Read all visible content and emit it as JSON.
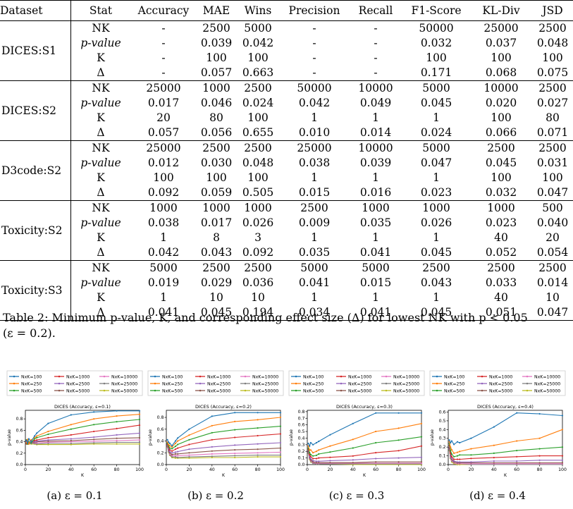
{
  "table": {
    "headers": [
      "Dataset",
      "Stat",
      "Accuracy",
      "MAE",
      "Wins",
      "Precision",
      "Recall",
      "F1-Score",
      "KL-Div",
      "JSD"
    ],
    "groups": [
      {
        "dataset": "DICES:S1",
        "rows": [
          {
            "stat": "NK",
            "values": [
              "-",
              "2500",
              "5000",
              "-",
              "-",
              "50000",
              "25000",
              "2500"
            ]
          },
          {
            "stat": "p-value",
            "values": [
              "-",
              "0.039",
              "0.042",
              "-",
              "-",
              "0.032",
              "0.037",
              "0.048"
            ]
          },
          {
            "stat": "K",
            "values": [
              "-",
              "100",
              "100",
              "-",
              "-",
              "100",
              "100",
              "100"
            ]
          },
          {
            "stat": "Δ",
            "values": [
              "-",
              "0.057",
              "0.663",
              "-",
              "-",
              "0.171",
              "0.068",
              "0.075"
            ]
          }
        ]
      },
      {
        "dataset": "DICES:S2",
        "rows": [
          {
            "stat": "NK",
            "values": [
              "25000",
              "1000",
              "2500",
              "50000",
              "10000",
              "5000",
              "10000",
              "2500"
            ]
          },
          {
            "stat": "p-value",
            "values": [
              "0.017",
              "0.046",
              "0.024",
              "0.042",
              "0.049",
              "0.045",
              "0.020",
              "0.027"
            ]
          },
          {
            "stat": "K",
            "values": [
              "20",
              "80",
              "100",
              "1",
              "1",
              "1",
              "100",
              "80"
            ]
          },
          {
            "stat": "Δ",
            "values": [
              "0.057",
              "0.056",
              "0.655",
              "0.010",
              "0.014",
              "0.024",
              "0.066",
              "0.071"
            ]
          }
        ]
      },
      {
        "dataset": "D3code:S2",
        "rows": [
          {
            "stat": "NK",
            "values": [
              "25000",
              "2500",
              "2500",
              "25000",
              "10000",
              "5000",
              "2500",
              "2500"
            ]
          },
          {
            "stat": "p-value",
            "values": [
              "0.012",
              "0.030",
              "0.048",
              "0.038",
              "0.039",
              "0.047",
              "0.045",
              "0.031"
            ]
          },
          {
            "stat": "K",
            "values": [
              "100",
              "100",
              "100",
              "1",
              "1",
              "1",
              "100",
              "100"
            ]
          },
          {
            "stat": "Δ",
            "values": [
              "0.092",
              "0.059",
              "0.505",
              "0.015",
              "0.016",
              "0.023",
              "0.032",
              "0.047"
            ]
          }
        ]
      },
      {
        "dataset": "Toxicity:S2",
        "rows": [
          {
            "stat": "NK",
            "values": [
              "1000",
              "1000",
              "1000",
              "2500",
              "1000",
              "1000",
              "1000",
              "500"
            ]
          },
          {
            "stat": "p-value",
            "values": [
              "0.038",
              "0.017",
              "0.026",
              "0.009",
              "0.035",
              "0.026",
              "0.023",
              "0.040"
            ]
          },
          {
            "stat": "K",
            "values": [
              "1",
              "8",
              "3",
              "1",
              "1",
              "1",
              "40",
              "20"
            ]
          },
          {
            "stat": "Δ",
            "values": [
              "0.042",
              "0.043",
              "0.092",
              "0.035",
              "0.041",
              "0.045",
              "0.052",
              "0.054"
            ]
          }
        ]
      },
      {
        "dataset": "Toxicity:S3",
        "rows": [
          {
            "stat": "NK",
            "values": [
              "5000",
              "2500",
              "2500",
              "5000",
              "5000",
              "2500",
              "2500",
              "2500"
            ]
          },
          {
            "stat": "p-value",
            "values": [
              "0.019",
              "0.029",
              "0.036",
              "0.041",
              "0.015",
              "0.043",
              "0.033",
              "0.014"
            ]
          },
          {
            "stat": "K",
            "values": [
              "1",
              "10",
              "10",
              "1",
              "1",
              "1",
              "40",
              "10"
            ]
          },
          {
            "stat": "Δ",
            "values": [
              "0.041",
              "0.045",
              "0.194",
              "0.034",
              "0.041",
              "0.045",
              "0.051",
              "0.047"
            ]
          }
        ]
      }
    ]
  },
  "caption": {
    "line1": "Table 2: Minimum p-value, K, and corresponding effect size (Δ) for lowest NK with p < 0.05",
    "line2": "(ε = 0.2)."
  },
  "colors": [
    "#1f77b4",
    "#ff7f0e",
    "#2ca02c",
    "#d62728",
    "#9467bd",
    "#8c564b",
    "#e377c2",
    "#7f7f7f",
    "#bcbd22"
  ],
  "chart_data": [
    {
      "type": "line",
      "title": "DICES (Accuracy, ε=0.1)",
      "caption": "(a) ε = 0.1",
      "xlabel": "K",
      "ylabel": "p-value",
      "xlim": [
        0,
        100
      ],
      "ylim": [
        0,
        0.95
      ],
      "xticks": [
        0,
        20,
        40,
        60,
        80,
        100
      ],
      "yticks": [
        0.0,
        0.2,
        0.4,
        0.6,
        0.8
      ],
      "legend": "top",
      "x": [
        1,
        2,
        3,
        5,
        8,
        10,
        20,
        40,
        60,
        80,
        100
      ],
      "series": [
        {
          "name": "NxK=100",
          "values": [
            0.42,
            0.38,
            0.45,
            0.4,
            0.5,
            0.55,
            0.72,
            0.87,
            0.92,
            0.94,
            0.94
          ]
        },
        {
          "name": "NxK=250",
          "values": [
            0.38,
            0.44,
            0.36,
            0.43,
            0.47,
            0.5,
            0.58,
            0.7,
            0.8,
            0.85,
            0.88
          ]
        },
        {
          "name": "NxK=500",
          "values": [
            0.43,
            0.36,
            0.4,
            0.38,
            0.45,
            0.47,
            0.53,
            0.62,
            0.7,
            0.75,
            0.79
          ]
        },
        {
          "name": "NxK=1000",
          "values": [
            0.37,
            0.42,
            0.38,
            0.4,
            0.42,
            0.43,
            0.47,
            0.52,
            0.58,
            0.63,
            0.69
          ]
        },
        {
          "name": "NxK=2500",
          "values": [
            0.41,
            0.37,
            0.39,
            0.4,
            0.4,
            0.41,
            0.43,
            0.45,
            0.48,
            0.52,
            0.55
          ]
        },
        {
          "name": "NxK=5000",
          "values": [
            0.36,
            0.4,
            0.38,
            0.39,
            0.39,
            0.4,
            0.41,
            0.42,
            0.44,
            0.46,
            0.47
          ]
        },
        {
          "name": "NxK=10000",
          "values": [
            0.4,
            0.38,
            0.37,
            0.38,
            0.38,
            0.38,
            0.39,
            0.4,
            0.41,
            0.42,
            0.43
          ]
        },
        {
          "name": "NxK=25000",
          "values": [
            0.38,
            0.41,
            0.36,
            0.37,
            0.37,
            0.36,
            0.37,
            0.37,
            0.38,
            0.39,
            0.39
          ]
        },
        {
          "name": "NxK=50000",
          "values": [
            0.42,
            0.36,
            0.39,
            0.36,
            0.36,
            0.35,
            0.35,
            0.35,
            0.36,
            0.36,
            0.36
          ]
        }
      ]
    },
    {
      "type": "line",
      "title": "DICES (Accuracy, ε=0.2)",
      "caption": "(b) ε = 0.2",
      "xlabel": "K",
      "ylabel": "p-value",
      "xlim": [
        0,
        100
      ],
      "ylim": [
        0,
        0.92
      ],
      "xticks": [
        0,
        20,
        40,
        60,
        80,
        100
      ],
      "yticks": [
        0.0,
        0.2,
        0.4,
        0.6,
        0.8
      ],
      "legend": "top",
      "x": [
        1,
        2,
        3,
        5,
        8,
        10,
        20,
        40,
        60,
        80,
        100
      ],
      "series": [
        {
          "name": "NxK=100",
          "values": [
            0.42,
            0.38,
            0.36,
            0.32,
            0.4,
            0.45,
            0.6,
            0.82,
            0.88,
            0.88,
            0.88
          ]
        },
        {
          "name": "NxK=250",
          "values": [
            0.38,
            0.34,
            0.32,
            0.3,
            0.36,
            0.4,
            0.5,
            0.66,
            0.73,
            0.76,
            0.8
          ]
        },
        {
          "name": "NxK=500",
          "values": [
            0.36,
            0.32,
            0.28,
            0.27,
            0.31,
            0.34,
            0.42,
            0.54,
            0.59,
            0.62,
            0.65
          ]
        },
        {
          "name": "NxK=1000",
          "values": [
            0.35,
            0.3,
            0.25,
            0.23,
            0.26,
            0.28,
            0.34,
            0.42,
            0.46,
            0.49,
            0.52
          ]
        },
        {
          "name": "NxK=2500",
          "values": [
            0.34,
            0.27,
            0.22,
            0.2,
            0.21,
            0.22,
            0.26,
            0.3,
            0.33,
            0.35,
            0.37
          ]
        },
        {
          "name": "NxK=5000",
          "values": [
            0.33,
            0.25,
            0.2,
            0.17,
            0.18,
            0.18,
            0.2,
            0.23,
            0.25,
            0.26,
            0.28
          ]
        },
        {
          "name": "NxK=10000",
          "values": [
            0.32,
            0.24,
            0.18,
            0.15,
            0.15,
            0.15,
            0.16,
            0.18,
            0.19,
            0.2,
            0.21
          ]
        },
        {
          "name": "NxK=25000",
          "values": [
            0.31,
            0.22,
            0.17,
            0.13,
            0.13,
            0.12,
            0.13,
            0.14,
            0.15,
            0.16,
            0.16
          ]
        },
        {
          "name": "NxK=50000",
          "values": [
            0.3,
            0.21,
            0.16,
            0.12,
            0.11,
            0.11,
            0.11,
            0.12,
            0.12,
            0.13,
            0.13
          ]
        }
      ]
    },
    {
      "type": "line",
      "title": "DICES (Accuracy, ε=0.3)",
      "caption": "(c) ε = 0.3",
      "xlabel": "K",
      "ylabel": "p-value",
      "xlim": [
        0,
        100
      ],
      "ylim": [
        0,
        0.82
      ],
      "xticks": [
        0,
        20,
        40,
        60,
        80,
        100
      ],
      "yticks": [
        0.0,
        0.1,
        0.2,
        0.3,
        0.4,
        0.5,
        0.6,
        0.7,
        0.8
      ],
      "legend": "top",
      "x": [
        1,
        2,
        3,
        5,
        8,
        10,
        20,
        40,
        60,
        80,
        100
      ],
      "series": [
        {
          "name": "NxK=100",
          "values": [
            0.32,
            0.28,
            0.33,
            0.3,
            0.33,
            0.35,
            0.45,
            0.62,
            0.78,
            0.78,
            0.78
          ]
        },
        {
          "name": "NxK=250",
          "values": [
            0.28,
            0.22,
            0.22,
            0.18,
            0.2,
            0.22,
            0.28,
            0.38,
            0.5,
            0.55,
            0.62
          ]
        },
        {
          "name": "NxK=500",
          "values": [
            0.25,
            0.18,
            0.15,
            0.13,
            0.14,
            0.16,
            0.19,
            0.25,
            0.33,
            0.37,
            0.42
          ]
        },
        {
          "name": "NxK=1000",
          "values": [
            0.23,
            0.15,
            0.12,
            0.09,
            0.09,
            0.1,
            0.11,
            0.13,
            0.18,
            0.21,
            0.28
          ]
        },
        {
          "name": "NxK=2500",
          "values": [
            0.21,
            0.12,
            0.09,
            0.06,
            0.05,
            0.05,
            0.06,
            0.07,
            0.09,
            0.1,
            0.11
          ]
        },
        {
          "name": "NxK=5000",
          "values": [
            0.2,
            0.11,
            0.07,
            0.04,
            0.03,
            0.03,
            0.03,
            0.03,
            0.04,
            0.04,
            0.04
          ]
        },
        {
          "name": "NxK=10000",
          "values": [
            0.19,
            0.1,
            0.06,
            0.03,
            0.02,
            0.02,
            0.02,
            0.02,
            0.02,
            0.02,
            0.02
          ]
        },
        {
          "name": "NxK=25000",
          "values": [
            0.18,
            0.09,
            0.05,
            0.02,
            0.01,
            0.01,
            0.01,
            0.01,
            0.01,
            0.01,
            0.01
          ]
        },
        {
          "name": "NxK=50000",
          "values": [
            0.17,
            0.08,
            0.04,
            0.02,
            0.01,
            0.01,
            0.01,
            0.0,
            0.0,
            0.0,
            0.0
          ]
        }
      ]
    },
    {
      "type": "line",
      "title": "DICES (Accuracy, ε=0.4)",
      "caption": "(d) ε = 0.4",
      "xlabel": "K",
      "ylabel": "p-value",
      "xlim": [
        0,
        100
      ],
      "ylim": [
        0,
        0.62
      ],
      "xticks": [
        0,
        20,
        40,
        60,
        80,
        100
      ],
      "yticks": [
        0.0,
        0.1,
        0.2,
        0.3,
        0.4,
        0.5,
        0.6
      ],
      "legend": "top",
      "x": [
        1,
        2,
        3,
        5,
        8,
        10,
        20,
        40,
        60,
        80,
        100
      ],
      "series": [
        {
          "name": "NxK=100",
          "values": [
            0.28,
            0.25,
            0.27,
            0.23,
            0.26,
            0.25,
            0.3,
            0.43,
            0.59,
            0.58,
            0.56
          ]
        },
        {
          "name": "NxK=250",
          "values": [
            0.26,
            0.2,
            0.17,
            0.13,
            0.14,
            0.15,
            0.18,
            0.22,
            0.27,
            0.3,
            0.4
          ]
        },
        {
          "name": "NxK=500",
          "values": [
            0.24,
            0.16,
            0.12,
            0.09,
            0.1,
            0.11,
            0.11,
            0.13,
            0.16,
            0.18,
            0.2
          ]
        },
        {
          "name": "NxK=1000",
          "values": [
            0.22,
            0.13,
            0.09,
            0.06,
            0.06,
            0.06,
            0.07,
            0.08,
            0.09,
            0.1,
            0.1
          ]
        },
        {
          "name": "NxK=2500",
          "values": [
            0.2,
            0.11,
            0.07,
            0.04,
            0.03,
            0.03,
            0.03,
            0.04,
            0.04,
            0.05,
            0.05
          ]
        },
        {
          "name": "NxK=5000",
          "values": [
            0.19,
            0.1,
            0.06,
            0.03,
            0.02,
            0.02,
            0.02,
            0.02,
            0.02,
            0.02,
            0.02
          ]
        },
        {
          "name": "NxK=10000",
          "values": [
            0.18,
            0.09,
            0.05,
            0.02,
            0.01,
            0.01,
            0.01,
            0.01,
            0.01,
            0.01,
            0.01
          ]
        },
        {
          "name": "NxK=25000",
          "values": [
            0.17,
            0.08,
            0.04,
            0.02,
            0.01,
            0.01,
            0.0,
            0.0,
            0.0,
            0.0,
            0.0
          ]
        },
        {
          "name": "NxK=50000",
          "values": [
            0.16,
            0.07,
            0.03,
            0.01,
            0.0,
            0.0,
            0.0,
            0.0,
            0.0,
            0.0,
            0.0
          ]
        }
      ]
    }
  ]
}
